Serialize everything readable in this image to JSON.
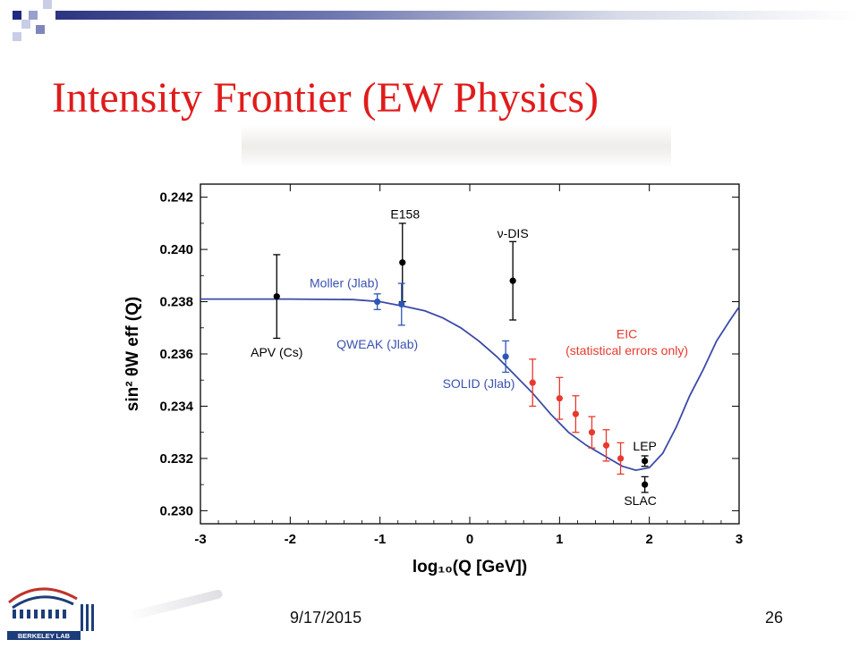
{
  "slide": {
    "title": "Intensity Frontier (EW Physics)",
    "date": "9/17/2015",
    "page_number": "26",
    "logo_text": "BERKELEY LAB"
  },
  "colors": {
    "title": "#e01b1b",
    "theory_curve": "#3a4aa8",
    "existing_points": "#000000",
    "planned_blue": "#2c56b8",
    "eic_red": "#e8392e",
    "label_blue": "#3a52b0",
    "label_red": "#e8392e"
  },
  "chart_data": {
    "type": "scatter",
    "xlabel": "log₁₀(Q [GeV])",
    "ylabel": "sin² θW eff (Q)",
    "xlim": [
      -3,
      3
    ],
    "ylim": [
      0.2295,
      0.2425
    ],
    "x_ticks": [
      "-3",
      "-2",
      "-1",
      "0",
      "1",
      "2",
      "3"
    ],
    "y_ticks": [
      "0.230",
      "0.232",
      "0.234",
      "0.236",
      "0.238",
      "0.240",
      "0.242"
    ],
    "grid": false,
    "curve": {
      "points": [
        [
          -3.0,
          0.2381
        ],
        [
          -2.0,
          0.2381
        ],
        [
          -1.3,
          0.23808
        ],
        [
          -1.0,
          0.238
        ],
        [
          -0.7,
          0.2378
        ],
        [
          -0.5,
          0.23765
        ],
        [
          -0.3,
          0.23738
        ],
        [
          -0.1,
          0.237
        ],
        [
          0.1,
          0.2365
        ],
        [
          0.3,
          0.2359
        ],
        [
          0.5,
          0.2352
        ],
        [
          0.7,
          0.2345
        ],
        [
          0.9,
          0.2337
        ],
        [
          1.1,
          0.233
        ],
        [
          1.3,
          0.2325
        ],
        [
          1.5,
          0.2321
        ],
        [
          1.7,
          0.2317
        ],
        [
          1.85,
          0.23155
        ],
        [
          2.0,
          0.23165
        ],
        [
          2.15,
          0.2322
        ],
        [
          2.3,
          0.2332
        ],
        [
          2.45,
          0.2344
        ],
        [
          2.6,
          0.2354
        ],
        [
          2.75,
          0.2365
        ],
        [
          2.9,
          0.2373
        ],
        [
          3.0,
          0.2378
        ]
      ]
    },
    "series": [
      {
        "name": "existing",
        "color": "#000000",
        "points": [
          {
            "x": -2.15,
            "y": 0.2382,
            "err": 0.0016
          },
          {
            "x": -0.75,
            "y": 0.2395,
            "err": 0.0015
          },
          {
            "x": 0.48,
            "y": 0.2388,
            "err": 0.0015
          },
          {
            "x": 1.95,
            "y": 0.2319,
            "err": 0.0002
          },
          {
            "x": 1.95,
            "y": 0.231,
            "err": 0.0003
          }
        ]
      },
      {
        "name": "planned",
        "color": "#2c56b8",
        "points": [
          {
            "x": -1.03,
            "y": 0.238,
            "err": 0.0003
          },
          {
            "x": -0.76,
            "y": 0.2379,
            "err": 0.0008
          },
          {
            "x": 0.4,
            "y": 0.2359,
            "err": 0.0006
          }
        ]
      },
      {
        "name": "EIC",
        "color": "#e8392e",
        "points": [
          {
            "x": 0.7,
            "y": 0.2349,
            "err": 0.0009
          },
          {
            "x": 1.0,
            "y": 0.2343,
            "err": 0.0008
          },
          {
            "x": 1.18,
            "y": 0.2337,
            "err": 0.0007
          },
          {
            "x": 1.36,
            "y": 0.233,
            "err": 0.0006
          },
          {
            "x": 1.52,
            "y": 0.2325,
            "err": 0.0006
          },
          {
            "x": 1.68,
            "y": 0.232,
            "err": 0.0006
          }
        ]
      }
    ],
    "annotations": [
      {
        "text": "E158",
        "x": -0.72,
        "y": 0.24118,
        "color": "#000000"
      },
      {
        "text": "ν-DIS",
        "x": 0.48,
        "y": 0.24045,
        "color": "#000000"
      },
      {
        "text": "Moller (Jlab)",
        "x": -1.4,
        "y": 0.23855,
        "color": "#3a52b0"
      },
      {
        "text": "APV (Cs)",
        "x": -2.15,
        "y": 0.2359,
        "color": "#000000"
      },
      {
        "text": "QWEAK (Jlab)",
        "x": -1.03,
        "y": 0.2362,
        "color": "#3a52b0"
      },
      {
        "text": "SOLID (Jlab)",
        "x": 0.1,
        "y": 0.2347,
        "color": "#3a52b0"
      },
      {
        "text": "EIC",
        "x": 1.75,
        "y": 0.2366,
        "color": "#e8392e"
      },
      {
        "text": "(statistical errors only)",
        "x": 1.75,
        "y": 0.23597,
        "color": "#e8392e"
      },
      {
        "text": "LEP",
        "x": 1.95,
        "y": 0.2323,
        "color": "#000000"
      },
      {
        "text": "SLAC",
        "x": 1.9,
        "y": 0.23022,
        "color": "#000000"
      }
    ]
  }
}
